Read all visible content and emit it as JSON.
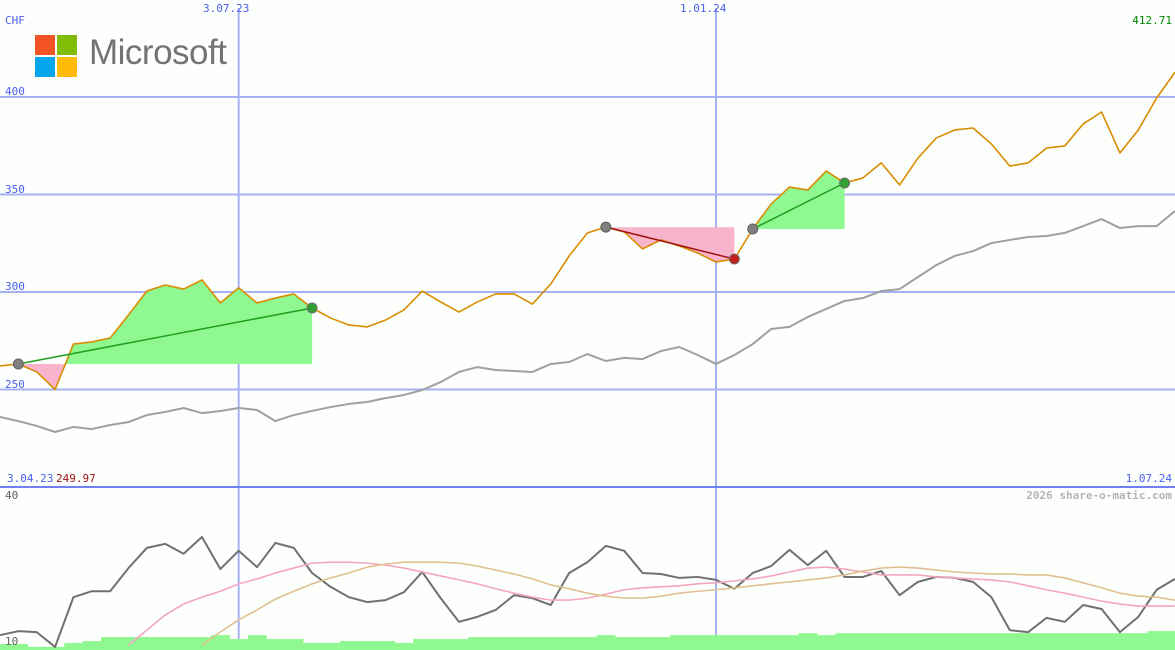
{
  "chart_data": {
    "type": "line",
    "currency_label": "CHF",
    "brand": "Microsoft",
    "x_start": "3.04.23",
    "x_end": "1.07.24",
    "x_ticks": [
      "3.07.23",
      "1.01.24"
    ],
    "x_tick_index": [
      13,
      39
    ],
    "y_ticks": [
      400,
      350,
      300,
      250
    ],
    "ylim": [
      200,
      412.71
    ],
    "last_value": "412.71",
    "min_value": "249.97",
    "lower_panel": {
      "y_ticks": [
        40,
        10
      ],
      "ylim": [
        8.6,
        40
      ]
    },
    "watermark": "2026 share-o-matic.com",
    "grid": true,
    "colors": {
      "price": "#d98c00",
      "benchmark": "#a0a0a0",
      "oscillator": "#707070",
      "ma_fast": "#f4a6c0",
      "ma_slow": "#e0c090",
      "volume": "#90f890",
      "gain": "#90f890",
      "loss": "#f8b4cc",
      "grid": "#a8b0f4",
      "axis_text": "#4a5ef0",
      "last_value": "#008800",
      "min_value": "#a01010"
    },
    "series": [
      {
        "key": "price",
        "values": [
          262.1,
          263.1,
          259.0,
          250.0,
          273.3,
          274.4,
          276.4,
          288.2,
          300.5,
          303.6,
          301.5,
          306.2,
          294.4,
          302.1,
          294.4,
          296.9,
          299.0,
          291.8,
          286.7,
          283.1,
          282.1,
          285.6,
          290.8,
          300.5,
          294.9,
          289.7,
          294.9,
          299.0,
          299.0,
          293.8,
          304.1,
          318.5,
          330.3,
          333.3,
          330.8,
          322.1,
          326.7,
          323.6,
          320.0,
          315.4,
          316.9,
          332.3,
          345.1,
          353.8,
          352.3,
          362.1,
          355.9,
          358.5,
          366.2,
          354.9,
          368.7,
          379.0,
          383.1,
          384.1,
          375.9,
          364.6,
          366.2,
          373.8,
          374.9,
          386.2,
          392.3,
          371.3,
          383.1,
          399.5,
          412.71
        ]
      },
      {
        "key": "benchmark",
        "values": [
          235.9,
          233.8,
          231.3,
          228.2,
          230.8,
          229.7,
          231.8,
          233.3,
          236.9,
          238.5,
          240.5,
          237.9,
          239.0,
          240.5,
          239.5,
          233.8,
          236.9,
          239.0,
          241.0,
          242.6,
          243.6,
          245.6,
          247.2,
          249.7,
          253.8,
          259.0,
          261.5,
          260.0,
          259.5,
          259.0,
          263.1,
          264.1,
          268.2,
          264.6,
          266.2,
          265.6,
          269.7,
          271.8,
          267.7,
          263.1,
          267.7,
          273.3,
          281.0,
          282.1,
          287.2,
          291.3,
          295.4,
          296.9,
          300.5,
          301.5,
          307.7,
          313.8,
          318.5,
          321.0,
          325.1,
          326.7,
          328.2,
          328.7,
          330.3,
          333.8,
          337.4,
          332.8,
          333.8,
          333.8,
          341.5
        ]
      }
    ],
    "lower_series": [
      {
        "key": "oscillator",
        "start": 0,
        "values": [
          11.6,
          12.4,
          12.2,
          9.2,
          19.3,
          20.5,
          20.5,
          25.2,
          29.3,
          30.1,
          28.1,
          31.5,
          25.0,
          28.7,
          25.4,
          30.3,
          29.3,
          24.2,
          21.4,
          19.3,
          18.3,
          18.7,
          20.3,
          24.4,
          19.1,
          14.3,
          15.3,
          16.7,
          19.7,
          19.1,
          17.7,
          24.2,
          26.4,
          29.7,
          28.7,
          24.2,
          24.0,
          23.2,
          23.4,
          22.8,
          21.0,
          24.2,
          25.6,
          28.9,
          25.8,
          28.7,
          23.4,
          23.4,
          24.6,
          19.7,
          22.4,
          23.4,
          23.2,
          22.4,
          19.3,
          12.6,
          12.2,
          15.1,
          14.3,
          17.7,
          16.9,
          12.2,
          15.3,
          20.8,
          23.0
        ]
      },
      {
        "key": "ma_fast",
        "start": 7,
        "values": [
          9.6,
          12.6,
          15.7,
          17.9,
          19.3,
          20.5,
          22.0,
          23.0,
          24.2,
          25.2,
          26.2,
          26.4,
          26.4,
          26.2,
          25.8,
          25.2,
          24.4,
          23.6,
          22.8,
          22.0,
          21.0,
          20.1,
          19.3,
          18.7,
          18.7,
          19.1,
          19.9,
          20.8,
          21.2,
          21.4,
          21.6,
          22.0,
          22.2,
          22.6,
          23.0,
          23.6,
          24.4,
          25.2,
          25.4,
          25.0,
          24.4,
          23.8,
          23.8,
          23.8,
          23.4,
          23.2,
          23.0,
          22.8,
          22.4,
          21.6,
          20.8,
          20.1,
          19.3,
          18.5,
          17.9,
          17.5,
          17.5,
          17.5
        ]
      },
      {
        "key": "ma_slow",
        "start": 11,
        "values": [
          9.6,
          12.2,
          14.7,
          16.7,
          18.9,
          20.5,
          22.0,
          23.2,
          24.2,
          25.4,
          26.0,
          26.4,
          26.4,
          26.4,
          26.2,
          25.6,
          24.8,
          24.0,
          23.0,
          21.8,
          21.0,
          20.1,
          19.5,
          19.1,
          19.1,
          19.5,
          20.1,
          20.5,
          20.8,
          21.2,
          21.6,
          22.0,
          22.4,
          22.8,
          23.2,
          23.8,
          24.6,
          25.2,
          25.4,
          25.2,
          24.8,
          24.4,
          24.2,
          24.0,
          24.0,
          23.8,
          23.8,
          23.2,
          22.2,
          21.2,
          20.1,
          19.5,
          19.3,
          18.7
        ]
      }
    ],
    "volume": [
      9.8,
      9.8,
      9.2,
      9.2,
      10.0,
      10.4,
      11.2,
      11.2,
      11.2,
      11.2,
      11.2,
      11.2,
      11.6,
      10.8,
      11.6,
      10.8,
      10.8,
      10.0,
      10.0,
      10.4,
      10.4,
      10.4,
      10.0,
      10.8,
      10.8,
      10.8,
      11.2,
      11.2,
      11.2,
      11.2,
      11.2,
      11.2,
      11.2,
      11.6,
      11.2,
      11.2,
      11.2,
      11.6,
      11.6,
      11.6,
      11.6,
      11.6,
      11.6,
      11.6,
      12.0,
      11.6,
      12.0,
      12.0,
      12.0,
      12.0,
      12.0,
      12.0,
      12.0,
      12.0,
      12.0,
      12.0,
      12.0,
      12.0,
      12.0,
      12.0,
      12.0,
      12.0,
      12.0,
      12.4,
      12.4
    ],
    "trades": [
      {
        "entry": 1,
        "exit": 17,
        "result": "gain"
      },
      {
        "entry": 33,
        "exit": 40,
        "result": "loss"
      },
      {
        "entry": 41,
        "exit": 46,
        "result": "gain"
      }
    ]
  }
}
